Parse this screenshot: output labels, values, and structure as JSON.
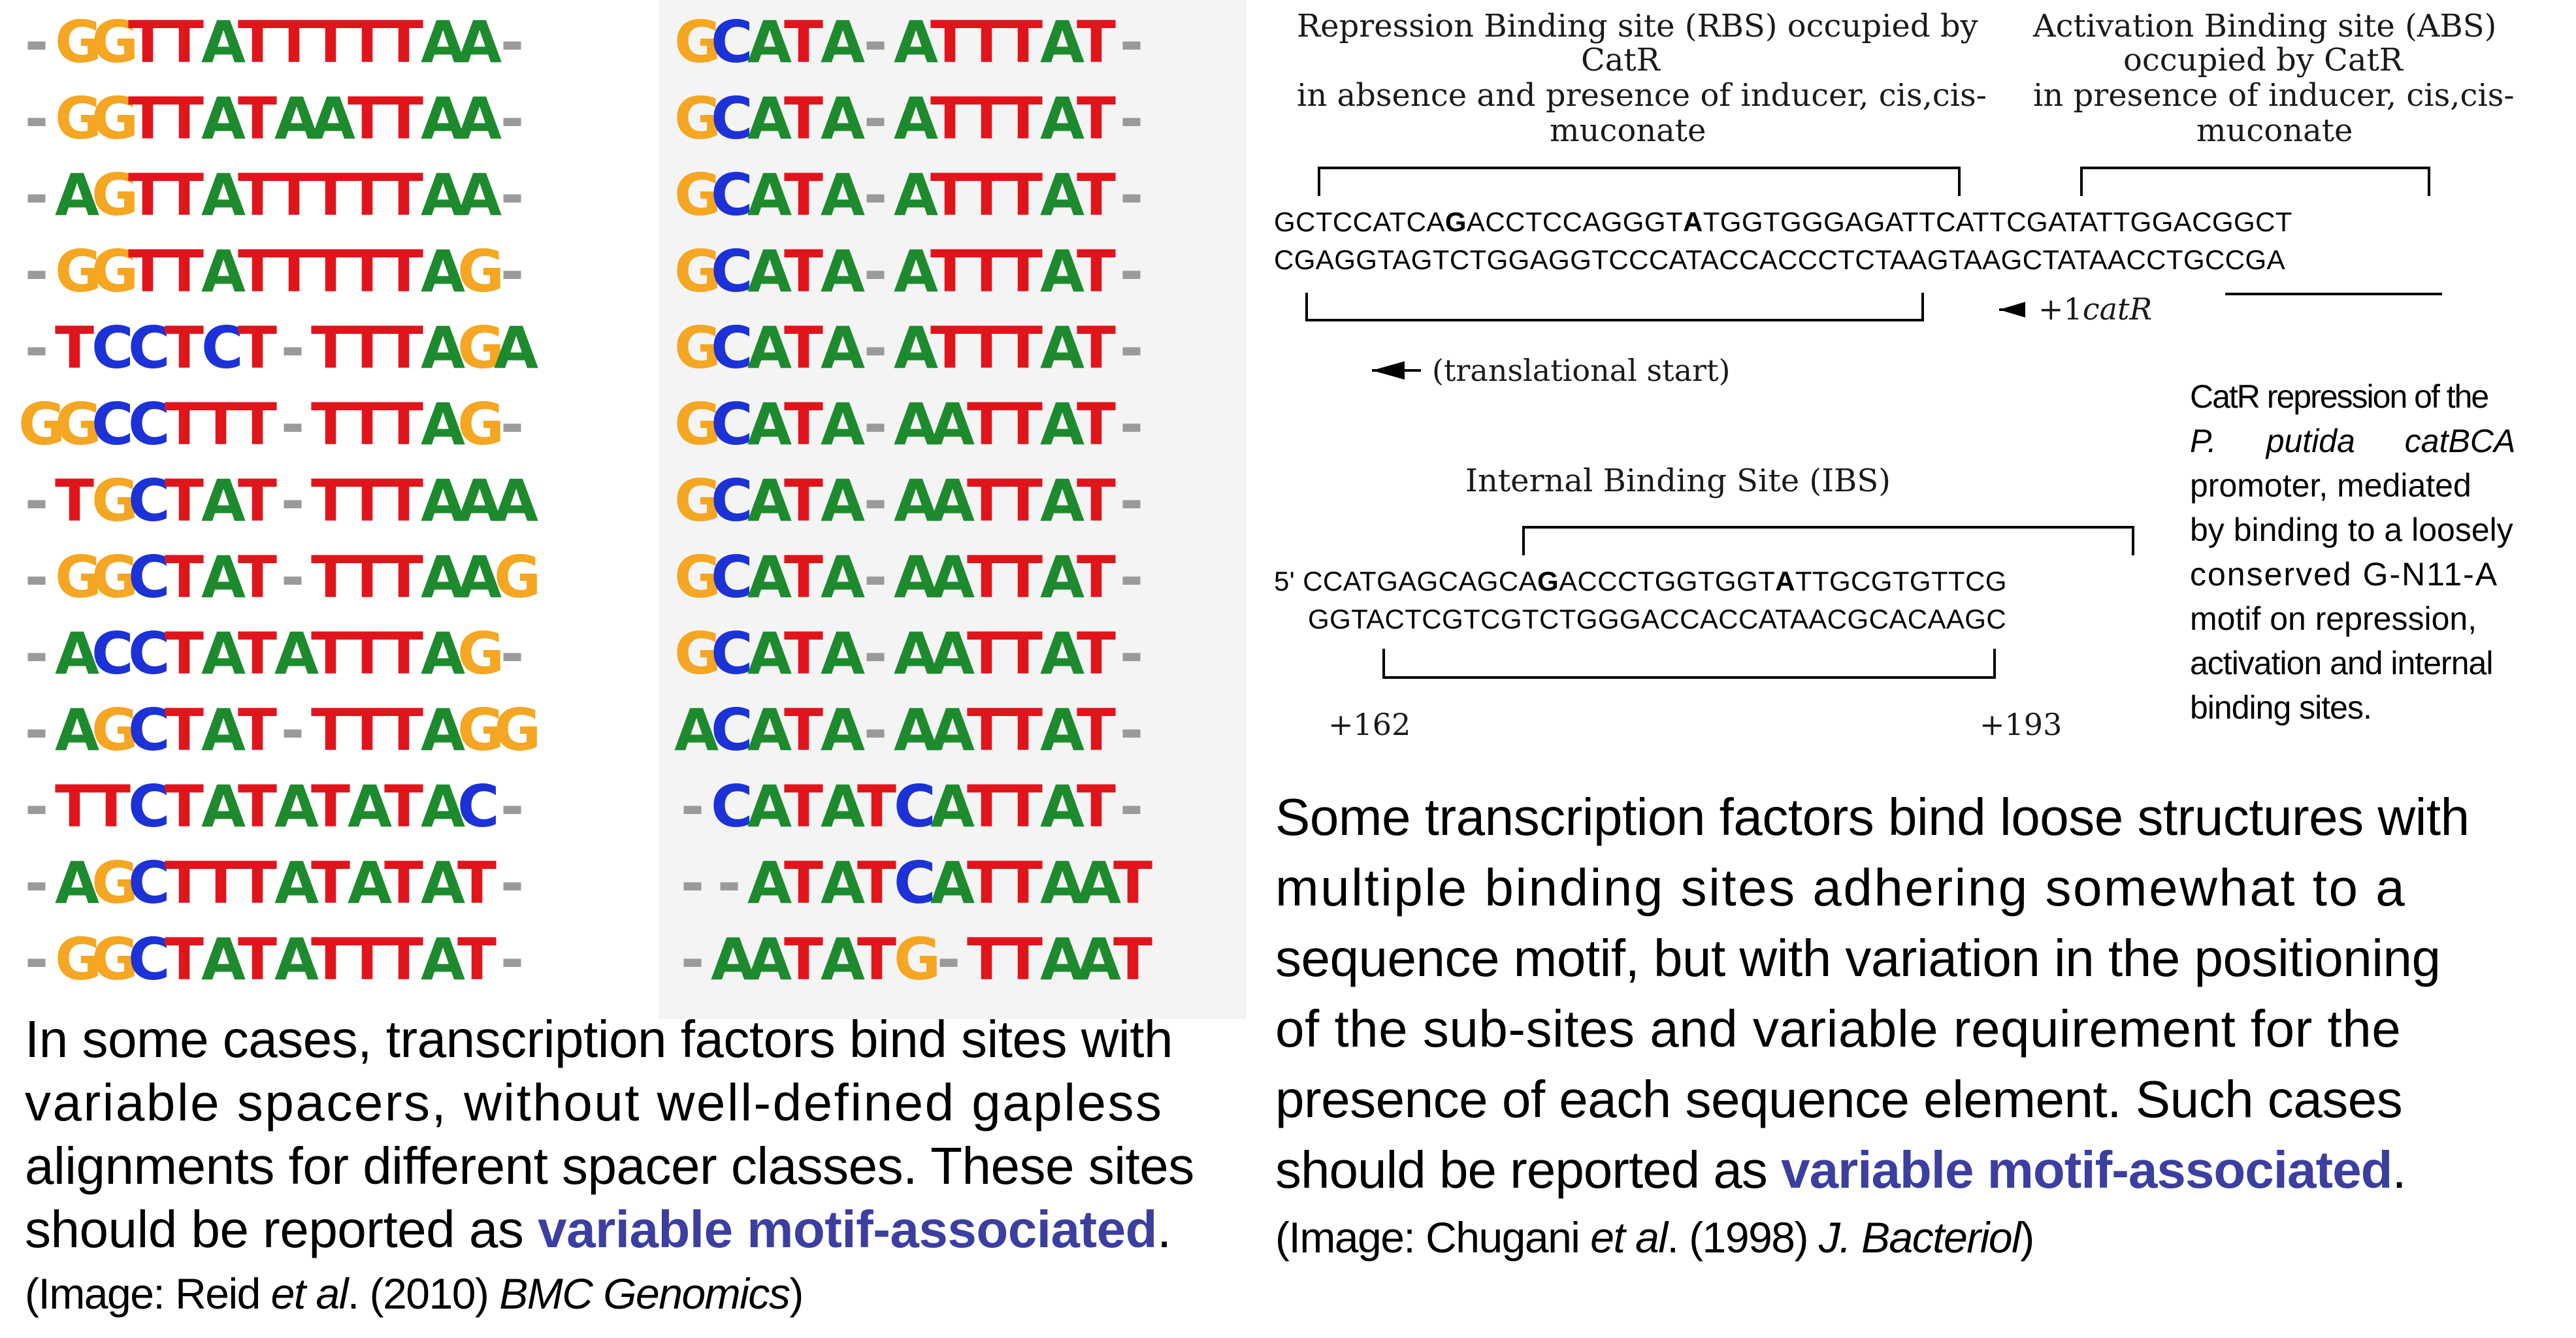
{
  "colors": {
    "A": "#1e8a2e",
    "C": "#1c32d6",
    "G": "#f5a623",
    "T": "#e0151c",
    "-": "#9a9a9a",
    "highlight": "#3b3fa0"
  },
  "alignment_left": [
    "-GGTTATTTTTAA-",
    "-GGTTATAATTAA-",
    "-AGTTATTTTTAA-",
    "-GGTTATTTTTAG-",
    "-TCCTCT-TTTAGA",
    "GGCCTTT-TTTAG-",
    "-TGCTAT-TTTAAA",
    "-GGCTAT-TTTAAG",
    "-ACCTATATTTAG-",
    "-AGCTAT-TTTAGG",
    "-TTCTATATATAC-",
    "-AGCTTTATATAT-",
    "-GGCTATATTTAT-"
  ],
  "alignment_right": [
    "GCATA-ATTTAT-",
    "GCATA-ATTTAT-",
    "GCATA-ATTTAT-",
    "GCATA-ATTTAT-",
    "GCATA-ATTTAT-",
    "GCATA-AATTAT-",
    "GCATA-AATTAT-",
    "GCATA-AATTAT-",
    "GCATA-AATTAT-",
    "ACATA-AATTAT-",
    "-CATATCATTAT-",
    "--ATATCATTAAT",
    "-AATATG-TTAAT"
  ],
  "left_caption": {
    "lines": [
      "In some cases, transcription factors bind sites with",
      "variable spacers, without well-defined gapless",
      "alignments for different spacer classes. These sites"
    ],
    "line4_prefix": "should be reported as ",
    "line4_highlight": "variable motif-associated",
    "line4_suffix": ".",
    "credit_prefix": "(Image: Reid ",
    "credit_etal": "et al",
    "credit_mid": ". (2010) ",
    "credit_journal": "BMC Genomics",
    "credit_suffix": ")"
  },
  "diagram": {
    "rbs_label": [
      "Repression Binding site (RBS) occupied by",
      "CatR",
      "in absence and presence of inducer, cis,cis-",
      "muconate"
    ],
    "abs_label": [
      "Activation Binding site (ABS)",
      "occupied by CatR",
      "in presence of inducer, cis,cis-",
      "muconate"
    ],
    "top_strand": {
      "a": "GCTCCATCA",
      "b": "G",
      "c": "ACCTCCAGGGT",
      "d": "A",
      "e": "TGGTGGGAGATTCATTCGATATTGGACGGCT"
    },
    "bottom_strand": "CGAGGTAGTCTGGAGGTCCCATACCACCCTCTAAGTAAGCTATAACCTGCCGA",
    "catr_start_prefix": "+1",
    "catr_start_gene": "catR",
    "translational_start": "(translational start)",
    "ibs_label": "Internal Binding Site (IBS)",
    "ibs_top": {
      "prefix": "5'",
      "a": "CCATGAGCAGCA",
      "b": "G",
      "c": "ACCCTGGTGGT",
      "d": "A",
      "e": "TTGCGTGTTCG"
    },
    "ibs_bottom": "GGTACTCGTCGTCTGGGACCACCATAACGCACAAGC",
    "pos_start": "+162",
    "pos_end": "+193"
  },
  "side_note": {
    "l1": "CatR repression of the",
    "l2": "P. putida catBCA",
    "l3": "promoter, mediated",
    "l4": "by binding to a loosely",
    "l5": "conserved G-N11-A",
    "l6": "motif on repression,",
    "l7": "activation and internal",
    "l8": "binding sites."
  },
  "right_caption": {
    "lines": [
      "Some transcription factors bind loose structures with",
      "multiple binding sites adhering somewhat to a",
      "sequence motif, but with variation in the positioning",
      "of the sub-sites and variable requirement for  the",
      "presence of each sequence element. Such cases"
    ],
    "line6_prefix": "should be reported as ",
    "line6_highlight": "variable motif-associated",
    "line6_suffix": ".",
    "credit_prefix": "(Image: Chugani ",
    "credit_etal": "et al",
    "credit_mid": ". (1998) ",
    "credit_journal": "J. Bacteriol",
    "credit_suffix": ")"
  }
}
